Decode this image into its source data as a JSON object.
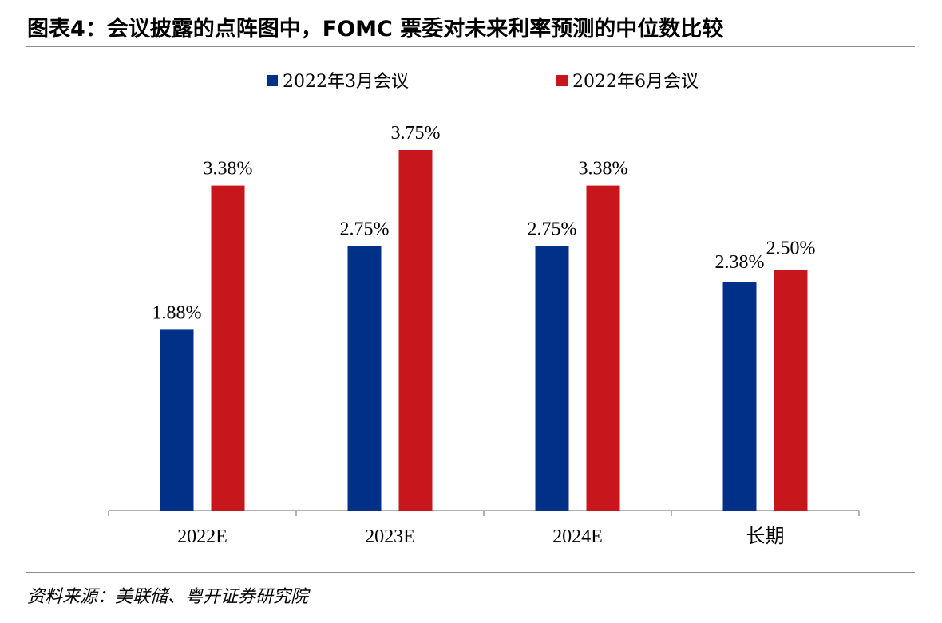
{
  "title": "图表4：会议披露的点阵图中，FOMC 票委对未来利率预测的中位数比较",
  "source": "资料来源：美联储、粤开证券研究院",
  "colors": {
    "series_1": "#003087",
    "series_2": "#c8161d",
    "axis": "#999999"
  },
  "chart_data": {
    "type": "bar",
    "categories": [
      "2022E",
      "2023E",
      "2024E",
      "长期"
    ],
    "series": [
      {
        "name": "2022年3月会议",
        "values": [
          1.88,
          2.75,
          2.75,
          2.38
        ],
        "labels": [
          "1.88%",
          "2.75%",
          "2.75%",
          "2.38%"
        ]
      },
      {
        "name": "2022年6月会议",
        "values": [
          3.38,
          3.75,
          3.38,
          2.5
        ],
        "labels": [
          "3.38%",
          "3.75%",
          "3.38%",
          "2.50%"
        ]
      }
    ],
    "ylim": [
      0,
      4.25
    ],
    "legend": "top-center",
    "grid": false
  }
}
